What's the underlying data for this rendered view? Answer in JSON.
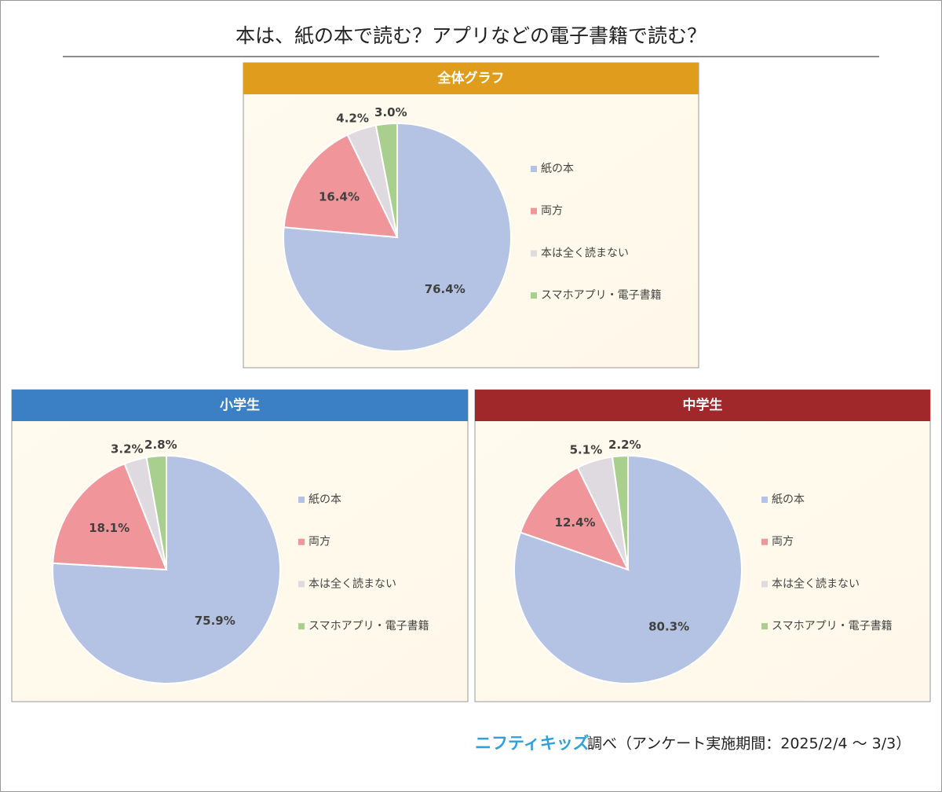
{
  "title": "本は、紙の本で読む？アプリなどの電子書籍で読む？",
  "chart_data": [
    {
      "type": "pie",
      "title": "全体グラフ",
      "header_color": "#e09c1c",
      "categories": [
        "紙の本",
        "両方",
        "本は全く読まない",
        "スマホアプリ・電子書籍"
      ],
      "values": [
        76.4,
        16.4,
        4.2,
        3.0
      ],
      "value_labels": [
        "76.4%",
        "16.4%",
        "4.2%",
        "3.0%"
      ],
      "colors": [
        "#b4c3e4",
        "#f0959a",
        "#dedae0",
        "#a8cf8e"
      ],
      "legend": "right"
    },
    {
      "type": "pie",
      "title": "小学生",
      "header_color": "#3b80c4",
      "categories": [
        "紙の本",
        "両方",
        "本は全く読まない",
        "スマホアプリ・電子書籍"
      ],
      "values": [
        75.9,
        18.1,
        3.2,
        2.8
      ],
      "value_labels": [
        "75.9%",
        "18.1%",
        "3.2%",
        "2.8%"
      ],
      "colors": [
        "#b4c3e4",
        "#f0959a",
        "#dedae0",
        "#a8cf8e"
      ],
      "legend": "right"
    },
    {
      "type": "pie",
      "title": "中学生",
      "header_color": "#a0272a",
      "categories": [
        "紙の本",
        "両方",
        "本は全く読まない",
        "スマホアプリ・電子書籍"
      ],
      "values": [
        80.3,
        12.4,
        5.1,
        2.2
      ],
      "value_labels": [
        "80.3%",
        "12.4%",
        "5.1%",
        "2.2%"
      ],
      "colors": [
        "#b4c3e4",
        "#f0959a",
        "#dedae0",
        "#a8cf8e"
      ],
      "legend": "right"
    }
  ],
  "source": {
    "logo": "ニフティキッズ",
    "text": "調べ（アンケート実施期間：2025/2/4 ～ 3/3）"
  }
}
